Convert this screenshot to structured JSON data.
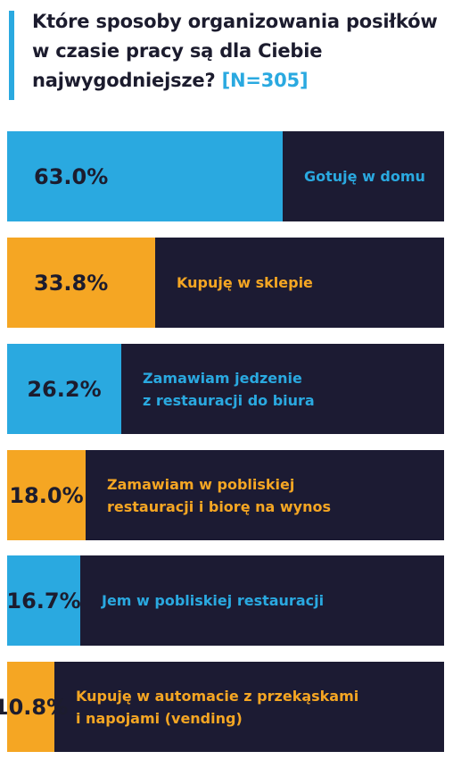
{
  "title": {
    "text": "Które sposoby organizowania posiłków w czasie pracy są dla Ciebie najwygodniejsze?",
    "n_label": "[N=305]"
  },
  "colors": {
    "blue": "#2aa9e0",
    "orange": "#f5a623",
    "dark": "#1c1b33",
    "text_dark": "#1c1c2e"
  },
  "chart_data": {
    "type": "bar",
    "orientation": "horizontal",
    "xlim": [
      0,
      100
    ],
    "unit": "%",
    "categories": [
      "Gotuję w domu",
      "Kupuję w sklepie",
      "Zamawiam jedzenie\nz restauracji do biura",
      "Zamawiam w pobliskiej\nrestauracji i biorę na wynos",
      "Jem w pobliskiej restauracji",
      "Kupuję w automacie z przekąskami\ni napojami (vending)"
    ],
    "values": [
      63.0,
      33.8,
      26.2,
      18.0,
      16.7,
      10.8
    ],
    "value_labels": [
      "63.0%",
      "33.8%",
      "26.2%",
      "18.0%",
      "16.7%",
      "10.8%"
    ],
    "bar_colors": [
      "blue",
      "orange",
      "blue",
      "orange",
      "blue",
      "orange"
    ]
  }
}
